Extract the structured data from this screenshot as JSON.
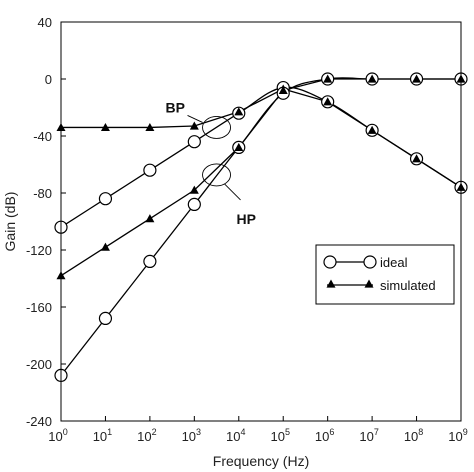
{
  "chart_data": {
    "type": "line",
    "title": "",
    "xlabel": "Frequency (Hz)",
    "ylabel": "Gain (dB)",
    "x_scale": "log",
    "xlim": [
      1,
      1000000000
    ],
    "ylim": [
      -240,
      40
    ],
    "x_ticks": [
      {
        "value": 1,
        "base": "10",
        "exp": "0"
      },
      {
        "value": 10,
        "base": "10",
        "exp": "1"
      },
      {
        "value": 100,
        "base": "10",
        "exp": "2"
      },
      {
        "value": 1000,
        "base": "10",
        "exp": "3"
      },
      {
        "value": 10000,
        "base": "10",
        "exp": "4"
      },
      {
        "value": 100000,
        "base": "10",
        "exp": "5"
      },
      {
        "value": 1000000,
        "base": "10",
        "exp": "6"
      },
      {
        "value": 10000000,
        "base": "10",
        "exp": "7"
      },
      {
        "value": 100000000,
        "base": "10",
        "exp": "8"
      },
      {
        "value": 1000000000,
        "base": "10",
        "exp": "9"
      }
    ],
    "y_ticks": [
      "40",
      "0",
      "-40",
      "-80",
      "-120",
      "-160",
      "-200",
      "-240"
    ],
    "y_tick_values": [
      40,
      0,
      -40,
      -80,
      -120,
      -160,
      -200,
      -240
    ],
    "grid": false,
    "legend_position": "middle-right",
    "legend": {
      "ideal": "ideal",
      "simulated": "simulated"
    },
    "annotations": [
      {
        "text": "BP",
        "target_x": 3000,
        "target_y": -34,
        "circle": "near BP curves at ~3 kHz"
      },
      {
        "text": "HP",
        "target_x": 3000,
        "target_y": -68,
        "circle": "near HP curves at ~3 kHz"
      }
    ],
    "series": [
      {
        "curve": "BP",
        "kind": "ideal",
        "marker": "circle",
        "x": [
          1,
          10,
          100,
          1000,
          10000,
          100000,
          1000000,
          10000000,
          100000000,
          1000000000
        ],
        "y": [
          -104,
          -84,
          -64,
          -44,
          -24,
          -6,
          -16,
          -36,
          -56,
          -76
        ]
      },
      {
        "curve": "BP",
        "kind": "simulated",
        "marker": "triangle",
        "x": [
          1,
          10,
          100,
          1000,
          10000,
          100000,
          1000000,
          10000000,
          100000000,
          1000000000
        ],
        "y": [
          -34,
          -34,
          -34,
          -33,
          -23,
          -7,
          -16,
          -36,
          -56,
          -76
        ]
      },
      {
        "curve": "HP",
        "kind": "ideal",
        "marker": "circle",
        "x": [
          1,
          10,
          100,
          1000,
          10000,
          100000,
          1000000,
          10000000,
          100000000,
          1000000000
        ],
        "y": [
          -208,
          -168,
          -128,
          -88,
          -48,
          -10,
          0,
          0,
          0,
          0
        ]
      },
      {
        "curve": "HP",
        "kind": "simulated",
        "marker": "triangle",
        "x": [
          1,
          10,
          100,
          1000,
          10000,
          100000,
          1000000,
          10000000,
          100000000,
          1000000000
        ],
        "y": [
          -138,
          -118,
          -98,
          -78,
          -48,
          -8,
          0,
          0,
          0,
          0
        ]
      }
    ]
  }
}
